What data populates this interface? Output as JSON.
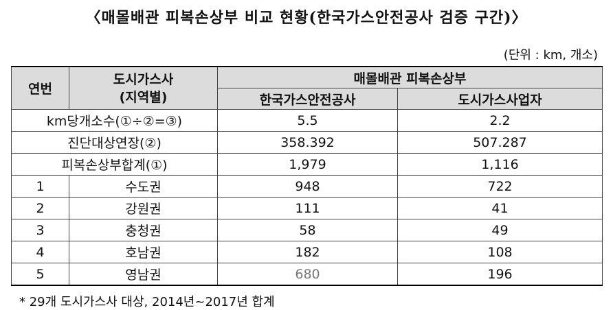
{
  "title": "〈매몰배관 피복손상부 비교 현황(한국가스안전공사 검증 구간)〉",
  "unit_note": "(단위 : km, 개소)",
  "table": {
    "header": {
      "col_year": "연번",
      "col_company": "도시가스사\n(지역별)",
      "col_group": "매몰배관 피복손상부",
      "col_kgs": "한국가스안전공사",
      "col_city": "도시가스사업자"
    },
    "summary_rows": [
      {
        "label": "km당개소수(①÷②=③)",
        "kgs": "5.5",
        "city": "2.2"
      },
      {
        "label": "진단대상연장(②)",
        "kgs": "358.392",
        "city": "507.287"
      },
      {
        "label": "피복손상부합계(①)",
        "kgs": "1,979",
        "city": "1,116"
      }
    ],
    "rows": [
      {
        "no": "1",
        "region": "수도권",
        "kgs": "948",
        "city": "722"
      },
      {
        "no": "2",
        "region": "강원권",
        "kgs": "111",
        "city": "41"
      },
      {
        "no": "3",
        "region": "충청권",
        "kgs": "58",
        "city": "49"
      },
      {
        "no": "4",
        "region": "호남권",
        "kgs": "182",
        "city": "108"
      },
      {
        "no": "5",
        "region": "영남권",
        "kgs": "680",
        "city": "196"
      }
    ]
  },
  "footnote": "* 29개 도시가스사 대상, 2014년~2017년 합계"
}
